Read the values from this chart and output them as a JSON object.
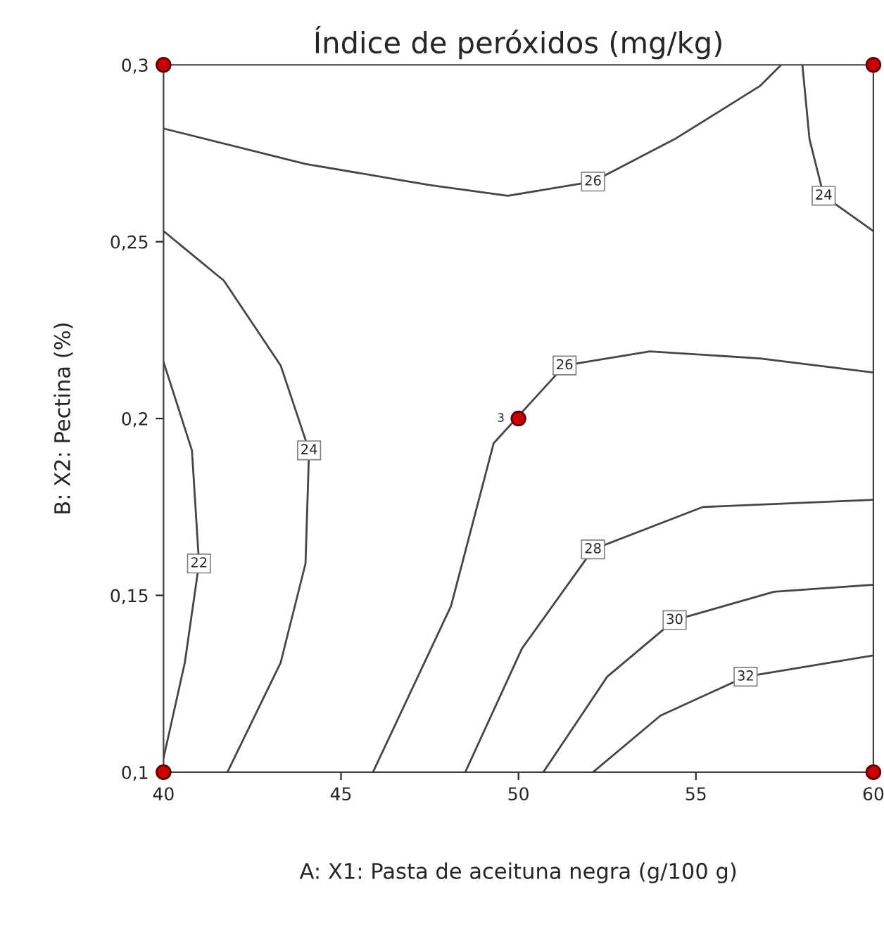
{
  "chart_data": {
    "type": "line",
    "title": "Índice de peróxidos (mg/kg)",
    "xlabel": "A: X1: Pasta de aceituna negra (g/100 g)",
    "ylabel": "B: X2: Pectina (%)",
    "xlim": [
      40,
      60
    ],
    "ylim": [
      0.1,
      0.3
    ],
    "xticks": [
      40,
      45,
      50,
      55,
      60
    ],
    "yticks": [
      {
        "value": 0.1,
        "label": "0,1"
      },
      {
        "value": 0.15,
        "label": "0,15"
      },
      {
        "value": 0.2,
        "label": "0,2"
      },
      {
        "value": 0.25,
        "label": "0,25"
      },
      {
        "value": 0.3,
        "label": "0,3"
      }
    ],
    "grid": false,
    "line_style": "solid",
    "series": [
      {
        "name": "22",
        "color": "#404a40",
        "x": [
          40,
          40.8,
          41.0,
          40.6,
          40
        ],
        "values": [
          0.216,
          0.191,
          0.159,
          0.131,
          0.104
        ]
      },
      {
        "name": "24",
        "color": "#404a40",
        "x": [
          40,
          41.7,
          43.3,
          44.1,
          44.0,
          43.3,
          41.8
        ],
        "values": [
          0.253,
          0.239,
          0.215,
          0.191,
          0.159,
          0.131,
          0.1
        ]
      },
      {
        "name": "26",
        "color": "#404a40",
        "x": [
          40,
          44,
          47.5,
          49.7,
          52.1,
          54.4,
          56.8,
          57.4
        ],
        "values": [
          0.282,
          0.272,
          0.266,
          0.263,
          0.267,
          0.279,
          0.294,
          0.3
        ]
      },
      {
        "name": "24",
        "color": "#404a40",
        "x": [
          58.0,
          58.2,
          58.6,
          60
        ],
        "values": [
          0.3,
          0.279,
          0.263,
          0.253
        ]
      },
      {
        "name": "26",
        "color": "#404a40",
        "x": [
          45.9,
          48.1,
          49.3,
          51.3,
          53.7,
          56.8,
          60
        ],
        "values": [
          0.1,
          0.147,
          0.193,
          0.215,
          0.219,
          0.217,
          0.213
        ]
      },
      {
        "name": "28",
        "color": "#404a40",
        "x": [
          48.5,
          50.1,
          52.1,
          55.2,
          60
        ],
        "values": [
          0.1,
          0.135,
          0.163,
          0.175,
          0.177
        ]
      },
      {
        "name": "30",
        "color": "#404a40",
        "x": [
          50.7,
          52.5,
          54.4,
          57.2,
          60
        ],
        "values": [
          0.1,
          0.127,
          0.143,
          0.151,
          0.153
        ]
      },
      {
        "name": "32",
        "color": "#404a40",
        "x": [
          52.1,
          54.0,
          56.4,
          60
        ],
        "values": [
          0.1,
          0.116,
          0.127,
          0.133
        ]
      },
      {
        "type": "scatter",
        "color": "#cc0000",
        "marker": "circle",
        "x": [
          40,
          40,
          60,
          60,
          50
        ],
        "values": [
          0.1,
          0.3,
          0.1,
          0.3,
          0.2
        ]
      }
    ],
    "annotations": [
      {
        "text": "3",
        "x": 50,
        "y": 0.2
      }
    ]
  }
}
